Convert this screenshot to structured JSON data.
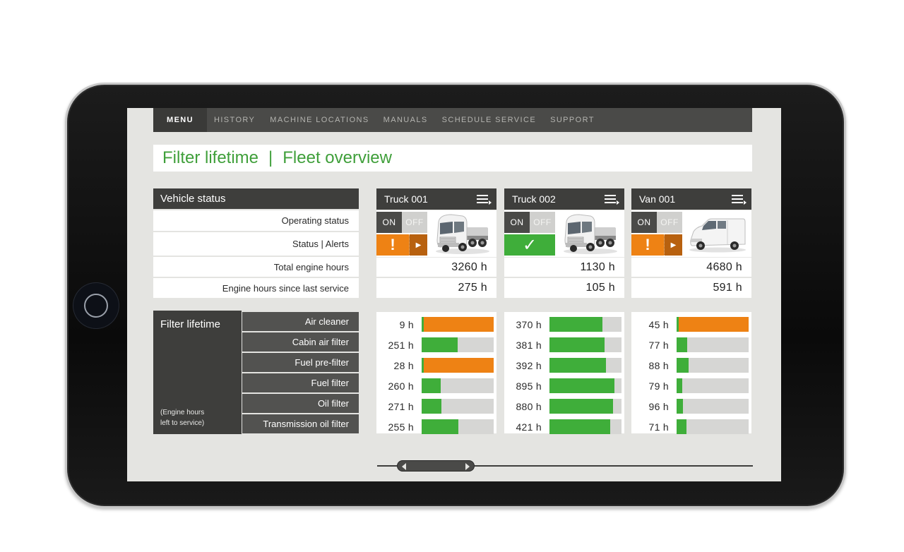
{
  "nav": {
    "items": [
      "MENU",
      "HISTORY",
      "MACHINE LOCATIONS",
      "MANUALS",
      "SCHEDULE SERVICE",
      "SUPPORT"
    ],
    "active": "MENU"
  },
  "title": {
    "left": "Filter lifetime",
    "separator": "|",
    "right": "Fleet overview"
  },
  "vehicle_status": {
    "header": "Vehicle status",
    "rows": [
      "Operating status",
      "Status | Alerts",
      "Total engine hours",
      "Engine hours since last service"
    ]
  },
  "filter_lifetime": {
    "header": "Filter lifetime",
    "note_line1": "(Engine hours",
    "note_line2": "left to service)",
    "filters": [
      "Air cleaner",
      "Cabin air filter",
      "Fuel pre-filter",
      "Fuel filter",
      "Oil filter",
      "Transmission oil filter"
    ]
  },
  "toggle": {
    "on": "ON",
    "off": "OFF"
  },
  "alert_glyphs": {
    "warning": "!",
    "ok": "✓",
    "arrow": "▶"
  },
  "colors": {
    "accent_green": "#3f9f3a",
    "ok_green": "#3fae3a",
    "warning_orange": "#ee8214",
    "dark_gray": "#3e3e3c"
  },
  "vehicles": [
    {
      "name": "Truck 001",
      "type": "truck",
      "operating": "ON",
      "status": "warning",
      "total_hours": "3260 h",
      "since_service": "275 h",
      "filters": [
        {
          "label": "9 h",
          "level": 1.0,
          "state": "warning"
        },
        {
          "label": "251 h",
          "level": 0.5,
          "state": "ok"
        },
        {
          "label": "28 h",
          "level": 1.0,
          "state": "warning"
        },
        {
          "label": "260 h",
          "level": 0.26,
          "state": "ok"
        },
        {
          "label": "271 h",
          "level": 0.27,
          "state": "ok"
        },
        {
          "label": "255 h",
          "level": 0.51,
          "state": "ok"
        }
      ]
    },
    {
      "name": "Truck 002",
      "type": "truck",
      "operating": "ON",
      "status": "ok",
      "total_hours": "1130 h",
      "since_service": "105 h",
      "filters": [
        {
          "label": "370 h",
          "level": 0.74,
          "state": "ok"
        },
        {
          "label": "381 h",
          "level": 0.76,
          "state": "ok"
        },
        {
          "label": "392 h",
          "level": 0.78,
          "state": "ok"
        },
        {
          "label": "895 h",
          "level": 0.9,
          "state": "ok"
        },
        {
          "label": "880 h",
          "level": 0.88,
          "state": "ok"
        },
        {
          "label": "421 h",
          "level": 0.84,
          "state": "ok"
        }
      ]
    },
    {
      "name": "Van 001",
      "type": "van",
      "operating": "ON",
      "status": "warning",
      "total_hours": "4680 h",
      "since_service": "591 h",
      "filters": [
        {
          "label": "45 h",
          "level": 1.0,
          "state": "warning"
        },
        {
          "label": "77 h",
          "level": 0.15,
          "state": "ok"
        },
        {
          "label": "88 h",
          "level": 0.17,
          "state": "ok"
        },
        {
          "label": "79 h",
          "level": 0.08,
          "state": "ok"
        },
        {
          "label": "96 h",
          "level": 0.09,
          "state": "ok"
        },
        {
          "label": "71 h",
          "level": 0.14,
          "state": "ok"
        }
      ]
    }
  ]
}
